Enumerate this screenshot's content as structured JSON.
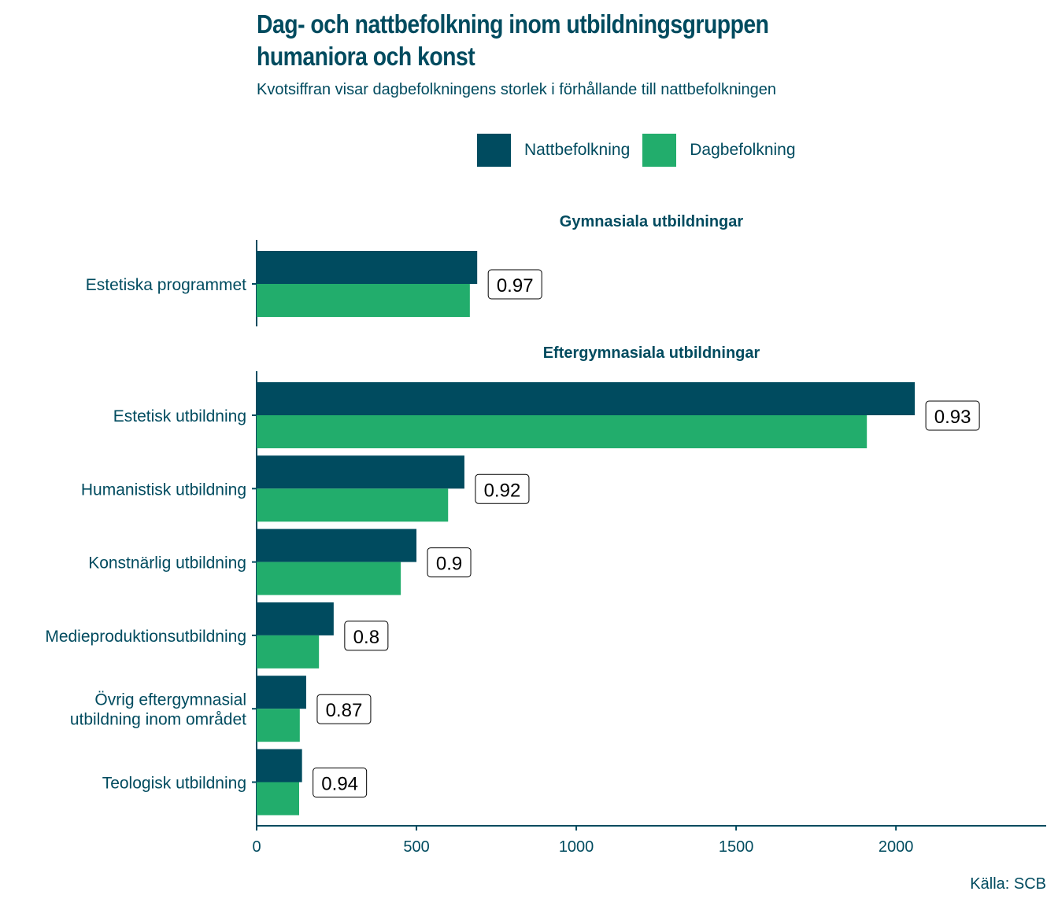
{
  "chart_data": {
    "type": "bar",
    "orientation": "horizontal",
    "title": "Dag- och nattbefolkning inom utbildningsgruppen humaniora och konst",
    "title_lines": [
      "Dag- och nattbefolkning inom utbildningsgruppen",
      "humaniora och konst"
    ],
    "subtitle": "Kvotsiffran visar dagbefolkningens storlek i förhållande till nattbefolkningen",
    "source": "Källa: SCB",
    "xlabel": "",
    "ylabel": "",
    "xlim": [
      0,
      2470
    ],
    "xticks": [
      0,
      500,
      1000,
      1500,
      2000
    ],
    "grid": false,
    "legend_position": "top",
    "series": [
      {
        "name": "Nattbefolkning",
        "color": "#004b5f"
      },
      {
        "name": "Dagbefolkning",
        "color": "#22ad6c"
      }
    ],
    "facets": [
      {
        "name": "Gymnasiala utbildningar",
        "categories": [
          {
            "label": [
              "Estetiska programmet"
            ],
            "natt": 690,
            "dag": 667,
            "ratio": "0.97"
          }
        ]
      },
      {
        "name": "Eftergymnasiala utbildningar",
        "categories": [
          {
            "label": [
              "Estetisk utbildning"
            ],
            "natt": 2059,
            "dag": 1909,
            "ratio": "0.93"
          },
          {
            "label": [
              "Humanistisk utbildning"
            ],
            "natt": 650,
            "dag": 599,
            "ratio": "0.92"
          },
          {
            "label": [
              "Konstnärlig utbildning"
            ],
            "natt": 500,
            "dag": 451,
            "ratio": "0.9"
          },
          {
            "label": [
              "Medieproduktionsutbildning"
            ],
            "natt": 241,
            "dag": 195,
            "ratio": "0.8"
          },
          {
            "label": [
              "Övrig eftergymnasial",
              "utbildning inom området"
            ],
            "natt": 155,
            "dag": 135,
            "ratio": "0.87"
          },
          {
            "label": [
              "Teologisk utbildning"
            ],
            "natt": 142,
            "dag": 133,
            "ratio": "0.94"
          }
        ]
      }
    ]
  }
}
